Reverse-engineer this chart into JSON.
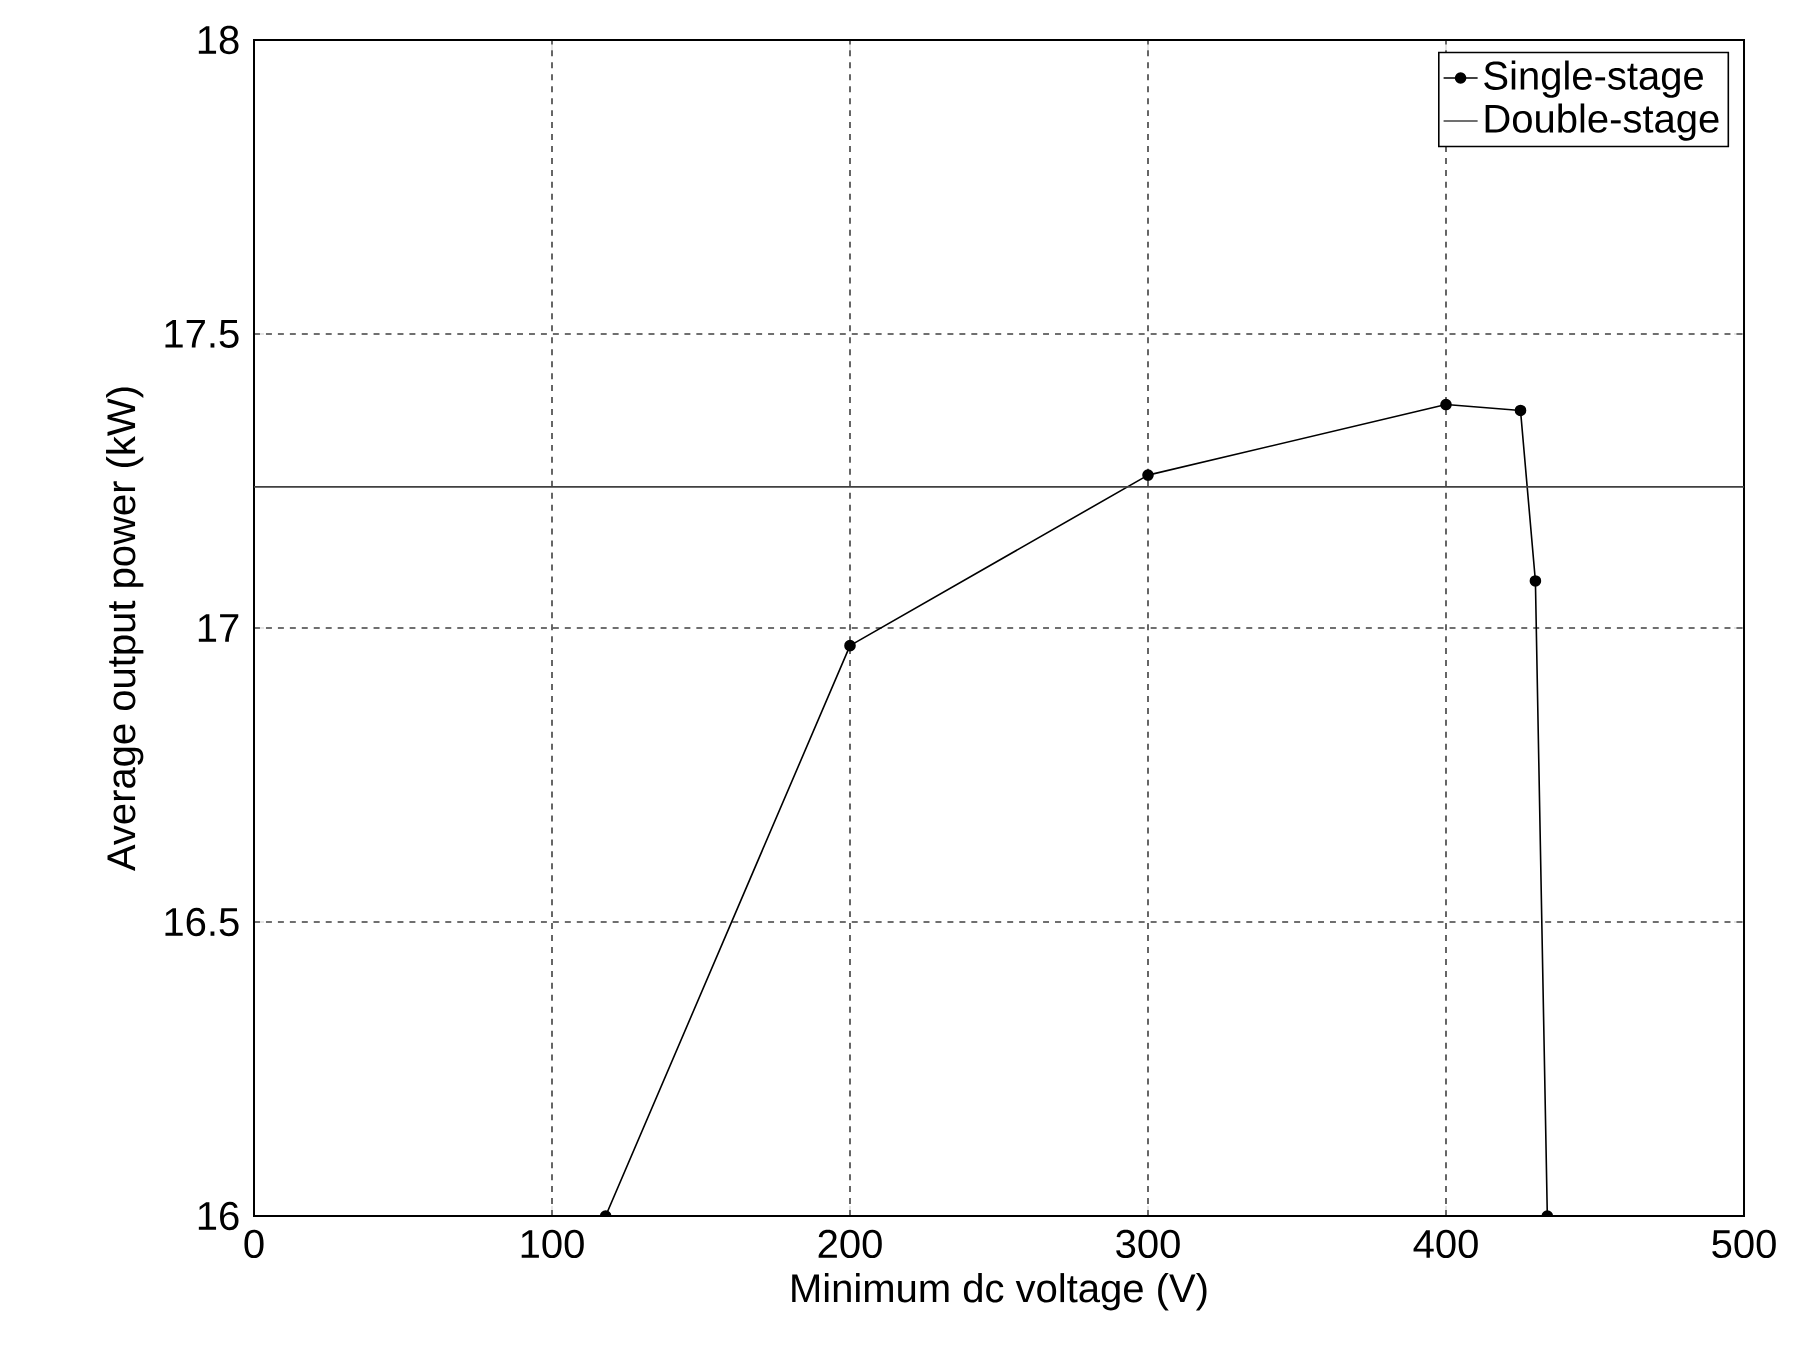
{
  "chart_data": {
    "type": "line",
    "xlabel": "Minimum dc voltage (V)",
    "ylabel": "Average output power (kW)",
    "xlim": [
      0,
      500
    ],
    "xticks": [
      0,
      100,
      200,
      300,
      400,
      500
    ],
    "ylim": [
      16,
      18
    ],
    "yticks": [
      16,
      16.5,
      17,
      17.5,
      18
    ],
    "grid": true,
    "legend": "top right",
    "series": [
      {
        "name": "Single-stage",
        "color": "#000000",
        "marker": "circle",
        "x": [
          118,
          200,
          300,
          400,
          425,
          430,
          434
        ],
        "values": [
          16,
          16.97,
          17.26,
          17.38,
          17.37,
          17.08,
          16
        ]
      },
      {
        "name": "Double-stage",
        "color": "#404040",
        "marker": "none",
        "x": [
          0,
          500
        ],
        "values": [
          17.24,
          17.24
        ]
      }
    ]
  }
}
